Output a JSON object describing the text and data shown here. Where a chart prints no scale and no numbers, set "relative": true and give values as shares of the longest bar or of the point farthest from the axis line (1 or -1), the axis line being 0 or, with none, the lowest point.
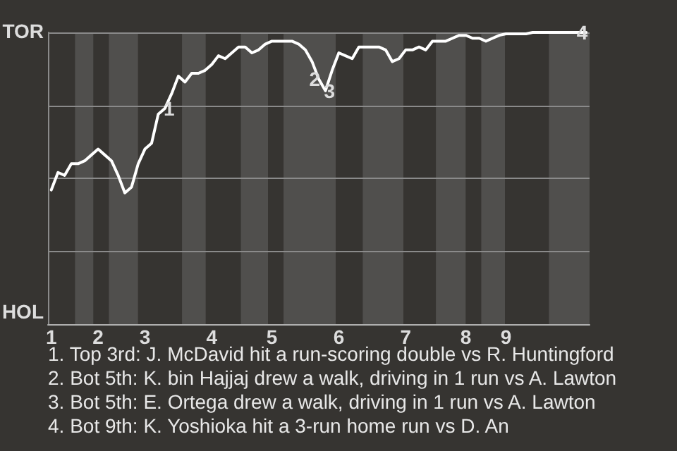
{
  "chart_data": {
    "type": "line",
    "relative": true,
    "categories": [
      "1",
      null,
      null,
      null,
      null,
      null,
      null,
      "2",
      null,
      null,
      null,
      null,
      null,
      null,
      "3",
      null,
      null,
      null,
      null,
      null,
      null,
      null,
      null,
      null,
      "4",
      null,
      null,
      null,
      null,
      null,
      null,
      null,
      null,
      "5",
      null,
      null,
      null,
      null,
      null,
      null,
      null,
      null,
      null,
      "6",
      null,
      null,
      null,
      null,
      null,
      null,
      null,
      null,
      null,
      "7",
      null,
      null,
      null,
      null,
      null,
      null,
      null,
      null,
      "8",
      null,
      null,
      null,
      null,
      null,
      "9",
      null,
      null,
      null,
      null,
      null,
      null,
      null,
      null,
      null,
      null,
      null,
      null
    ],
    "series": [
      {
        "color": "#ffffff",
        "values": [
          0.46,
          0.52,
          0.51,
          0.55,
          0.55,
          0.56,
          0.58,
          0.6,
          0.58,
          0.56,
          0.51,
          0.45,
          0.47,
          0.55,
          0.6,
          0.62,
          0.72,
          0.74,
          0.79,
          0.85,
          0.83,
          0.86,
          0.86,
          0.87,
          0.89,
          0.92,
          0.91,
          0.93,
          0.95,
          0.95,
          0.93,
          0.94,
          0.96,
          0.97,
          0.97,
          0.97,
          0.97,
          0.96,
          0.94,
          0.9,
          0.84,
          0.8,
          0.87,
          0.93,
          0.92,
          0.91,
          0.95,
          0.95,
          0.95,
          0.95,
          0.94,
          0.9,
          0.91,
          0.94,
          0.94,
          0.95,
          0.94,
          0.97,
          0.97,
          0.97,
          0.98,
          0.99,
          0.99,
          0.98,
          0.98,
          0.97,
          0.98,
          0.99,
          0.995,
          0.995,
          0.995,
          0.995,
          1,
          1,
          1,
          1,
          1,
          1,
          1,
          1,
          1
        ]
      }
    ],
    "grid": "y",
    "marker": "none",
    "line_style": "solid",
    "annotations": [
      "TOR",
      "HOL",
      {
        "text": "1",
        "y": 0.74
      },
      {
        "text": "2",
        "y": 0.84
      },
      {
        "text": "3",
        "y": 0.8
      },
      {
        "text": "4",
        "y": 1
      },
      "1. Top 3rd: J. McDavid hit a run-scoring double vs R. Huntingford",
      "2. Bot 5th: K. bin Hajjaj drew a walk, driving in 1 run vs A. Lawton",
      "3. Bot 5th: E. Ortega drew a walk, driving in 1 run vs A. Lawton",
      "4. Bot 9th: K. Yoshioka hit a 3-run home run vs D. An"
    ]
  }
}
